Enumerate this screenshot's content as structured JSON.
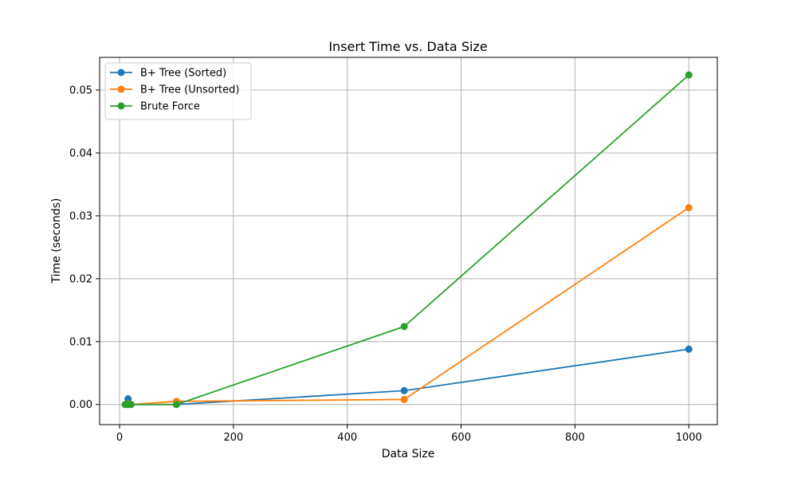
{
  "chart_data": {
    "type": "line",
    "title": "Insert Time vs. Data Size",
    "xlabel": "Data Size",
    "ylabel": "Time (seconds)",
    "xlim": [
      -35,
      1050
    ],
    "ylim": [
      -0.0032,
      0.0552
    ],
    "xticks": [
      0,
      200,
      400,
      600,
      800,
      1000
    ],
    "yticks": [
      0.0,
      0.01,
      0.02,
      0.03,
      0.04,
      0.05
    ],
    "xtick_labels": [
      "0",
      "200",
      "400",
      "600",
      "800",
      "1000"
    ],
    "ytick_labels": [
      "0.00",
      "0.01",
      "0.02",
      "0.03",
      "0.04",
      "0.05"
    ],
    "grid": true,
    "legend_position": "top-left",
    "series": [
      {
        "name": "B+ Tree (Sorted)",
        "color": "#1f77b4",
        "x": [
          10,
          15,
          20,
          100,
          500,
          1000
        ],
        "y": [
          0.0,
          0.0009,
          0.0,
          0.0,
          0.0022,
          0.0088
        ]
      },
      {
        "name": "B+ Tree (Unsorted)",
        "color": "#ff7f0e",
        "x": [
          10,
          15,
          20,
          100,
          500,
          1000
        ],
        "y": [
          0.0,
          0.0001,
          0.0,
          0.0005,
          0.0008,
          0.0313
        ]
      },
      {
        "name": "Brute Force",
        "color": "#2ca02c",
        "x": [
          10,
          15,
          20,
          100,
          500,
          1000
        ],
        "y": [
          0.0,
          0.0,
          0.0,
          0.0,
          0.0124,
          0.0524
        ]
      }
    ]
  }
}
